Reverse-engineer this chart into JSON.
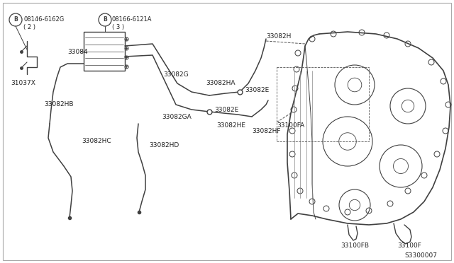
{
  "bg_color": "#ffffff",
  "line_color": "#404040",
  "text_color": "#222222",
  "dashed_color": "#555555",
  "labels": {
    "bolt1_num": "08146-6162G",
    "bolt1_qty": "( 2 )",
    "bolt2_num": "08166-6121A",
    "bolt2_qty": "( 3 )",
    "p33084": "33084",
    "p31037X": "31037X",
    "p33082HB": "33082HB",
    "p33082HC": "33082HC",
    "p33082HD": "33082HD",
    "p33082G": "33082G",
    "p33082HA": "33082HA",
    "p33082GA": "33082GA",
    "p33082E_1": "33082E",
    "p33082E_2": "33082E",
    "p33082H": "33082H",
    "p33082HF": "33082HF",
    "p33082HE": "33082HE",
    "p33100FA": "33100FA",
    "p33100FB": "33100FB",
    "p33100F": "33100F",
    "diagram_num": "S3300007"
  },
  "figsize": [
    6.4,
    3.72
  ],
  "dpi": 100
}
